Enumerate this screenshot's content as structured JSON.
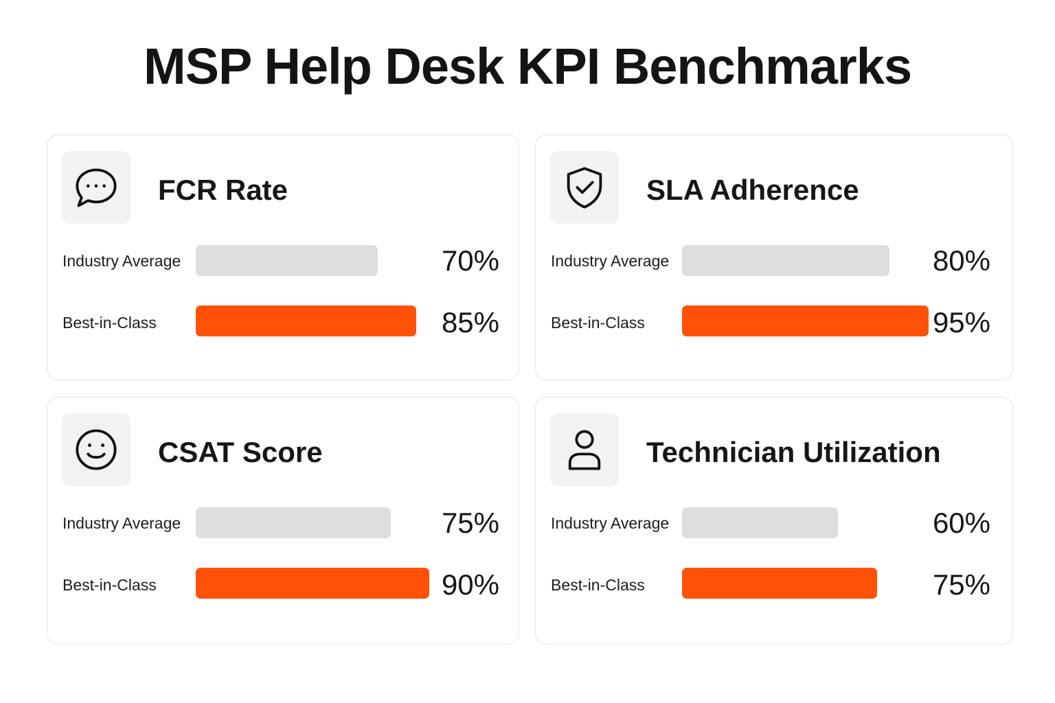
{
  "title": "MSP Help Desk KPI Benchmarks",
  "colors": {
    "industry_average_bar": "#dedede",
    "best_in_class_bar": "#ff5208",
    "icon_background": "#f2f2f2"
  },
  "cards": [
    {
      "title": "FCR Rate",
      "icon": "chat-bubble-icon",
      "rows": [
        {
          "label": "Industry Average",
          "value_text": "70%"
        },
        {
          "label": "Best-in-Class",
          "value_text": "85%"
        }
      ]
    },
    {
      "title": "SLA Adherence",
      "icon": "shield-check-icon",
      "rows": [
        {
          "label": "Industry Average",
          "value_text": "80%"
        },
        {
          "label": "Best-in-Class",
          "value_text": "95%"
        }
      ]
    },
    {
      "title": "CSAT Score",
      "icon": "smiley-face-icon",
      "rows": [
        {
          "label": "Industry Average",
          "value_text": "75%"
        },
        {
          "label": "Best-in-Class",
          "value_text": "90%"
        }
      ]
    },
    {
      "title": "Technician Utilization",
      "icon": "user-icon",
      "rows": [
        {
          "label": "Industry Average",
          "value_text": "60%"
        },
        {
          "label": "Best-in-Class",
          "value_text": "75%"
        }
      ]
    }
  ],
  "chart_data": [
    {
      "type": "bar",
      "title": "FCR Rate",
      "categories": [
        "Industry Average",
        "Best-in-Class"
      ],
      "values": [
        70,
        85
      ],
      "unit": "%"
    },
    {
      "type": "bar",
      "title": "SLA Adherence",
      "categories": [
        "Industry Average",
        "Best-in-Class"
      ],
      "values": [
        80,
        95
      ],
      "unit": "%"
    },
    {
      "type": "bar",
      "title": "CSAT Score",
      "categories": [
        "Industry Average",
        "Best-in-Class"
      ],
      "values": [
        75,
        90
      ],
      "unit": "%"
    },
    {
      "type": "bar",
      "title": "Technician Utilization",
      "categories": [
        "Industry Average",
        "Best-in-Class"
      ],
      "values": [
        60,
        75
      ],
      "unit": "%"
    }
  ]
}
